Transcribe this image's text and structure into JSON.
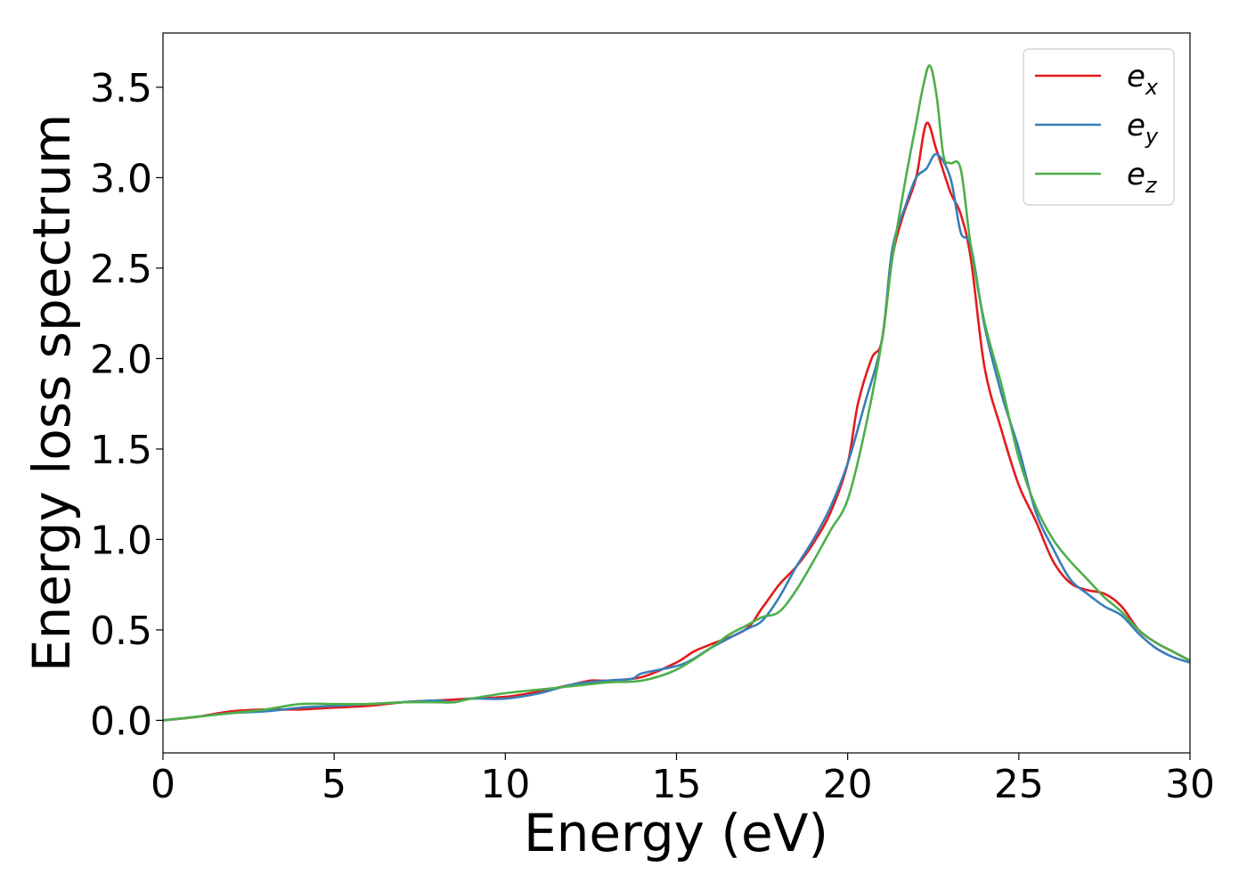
{
  "chart_data": {
    "type": "line",
    "title": "",
    "xlabel": "Energy (eV)",
    "ylabel": "Energy loss spectrum",
    "xlim": [
      0,
      30
    ],
    "ylim": [
      -0.18,
      3.8
    ],
    "xticks": [
      "0",
      "5",
      "10",
      "15",
      "20",
      "25",
      "30"
    ],
    "yticks": [
      "0.0",
      "0.5",
      "1.0",
      "1.5",
      "2.0",
      "2.5",
      "3.0",
      "3.5"
    ],
    "grid": false,
    "legend": "top-right",
    "series": [
      {
        "name": "e_x",
        "label_base": "e",
        "label_sub": "x",
        "color": "#e41a1c",
        "x": [
          0,
          1,
          2,
          3,
          4,
          5,
          6,
          7,
          8,
          9,
          10,
          11,
          12,
          12.5,
          13,
          14,
          15,
          15.5,
          16,
          17,
          17.5,
          18,
          18.5,
          19,
          19.5,
          20,
          20.3,
          20.7,
          21,
          21.3,
          21.6,
          22,
          22.3,
          22.6,
          23,
          23.3,
          23.6,
          24,
          24.5,
          25,
          25.5,
          26,
          26.5,
          27,
          27.5,
          28,
          28.5,
          29,
          29.5,
          30
        ],
        "y": [
          0.0,
          0.02,
          0.05,
          0.06,
          0.06,
          0.07,
          0.08,
          0.1,
          0.11,
          0.12,
          0.13,
          0.16,
          0.2,
          0.22,
          0.22,
          0.24,
          0.32,
          0.38,
          0.42,
          0.5,
          0.62,
          0.75,
          0.85,
          0.98,
          1.15,
          1.42,
          1.75,
          2.0,
          2.1,
          2.55,
          2.78,
          3.0,
          3.3,
          3.15,
          2.92,
          2.8,
          2.55,
          1.95,
          1.6,
          1.3,
          1.1,
          0.88,
          0.76,
          0.72,
          0.7,
          0.63,
          0.5,
          0.43,
          0.38,
          0.33
        ]
      },
      {
        "name": "e_y",
        "label_base": "e",
        "label_sub": "y",
        "color": "#377eb8",
        "x": [
          0,
          1,
          2,
          3,
          4,
          5,
          6,
          7,
          8,
          8.5,
          9,
          10,
          11,
          12,
          13,
          13.7,
          14,
          15,
          15.5,
          16,
          17,
          17.5,
          18,
          18.5,
          19,
          19.5,
          20,
          20.5,
          21,
          21.3,
          21.7,
          22,
          22.3,
          22.6,
          23,
          23.3,
          23.6,
          24,
          24.5,
          25,
          25.5,
          26,
          26.5,
          27,
          27.5,
          28,
          28.5,
          29,
          29.5,
          30
        ],
        "y": [
          0.0,
          0.02,
          0.04,
          0.05,
          0.07,
          0.08,
          0.09,
          0.1,
          0.11,
          0.1,
          0.12,
          0.12,
          0.15,
          0.2,
          0.22,
          0.23,
          0.26,
          0.3,
          0.34,
          0.4,
          0.5,
          0.55,
          0.68,
          0.85,
          1.0,
          1.18,
          1.42,
          1.75,
          2.1,
          2.6,
          2.85,
          3.0,
          3.05,
          3.13,
          3.0,
          2.7,
          2.62,
          2.18,
          1.8,
          1.5,
          1.15,
          0.95,
          0.78,
          0.7,
          0.63,
          0.58,
          0.48,
          0.4,
          0.35,
          0.32
        ]
      },
      {
        "name": "e_z",
        "label_base": "e",
        "label_sub": "z",
        "color": "#4daf4a",
        "x": [
          0,
          1,
          2,
          3,
          4,
          5,
          6,
          7,
          8,
          8.5,
          9,
          10,
          11,
          12,
          13,
          14,
          15,
          16,
          16.5,
          17,
          17.5,
          18,
          18.5,
          19,
          19.5,
          20,
          20.5,
          21,
          21.3,
          21.7,
          22,
          22.2,
          22.4,
          22.6,
          22.8,
          23,
          23.3,
          23.6,
          24,
          24.5,
          25,
          25.5,
          26,
          26.5,
          27,
          27.5,
          28,
          28.5,
          29,
          29.5,
          30
        ],
        "y": [
          0.0,
          0.02,
          0.04,
          0.06,
          0.09,
          0.09,
          0.09,
          0.1,
          0.1,
          0.1,
          0.12,
          0.15,
          0.17,
          0.19,
          0.21,
          0.22,
          0.28,
          0.4,
          0.47,
          0.52,
          0.57,
          0.6,
          0.72,
          0.88,
          1.05,
          1.22,
          1.6,
          2.1,
          2.55,
          3.0,
          3.3,
          3.5,
          3.62,
          3.45,
          3.12,
          3.08,
          3.05,
          2.62,
          2.2,
          1.85,
          1.45,
          1.18,
          1.0,
          0.88,
          0.78,
          0.68,
          0.6,
          0.5,
          0.43,
          0.38,
          0.33
        ]
      }
    ]
  }
}
